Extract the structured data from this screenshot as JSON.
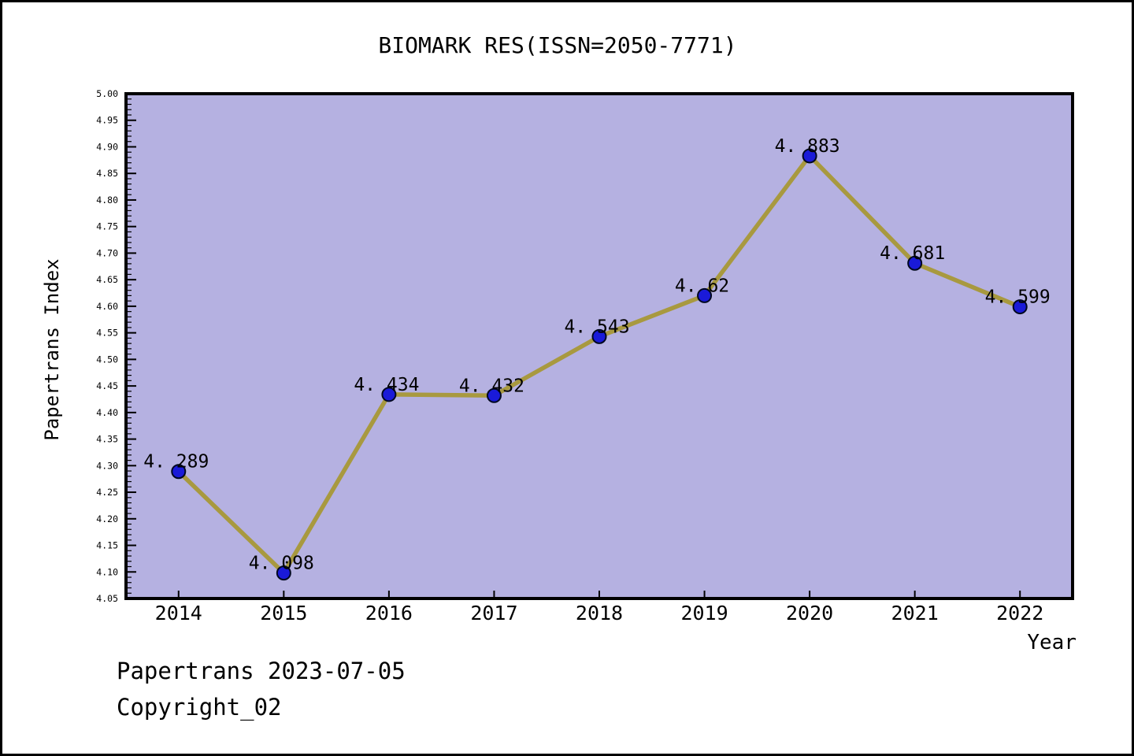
{
  "window": {
    "background": "#ffffff",
    "outer_border_color": "#000000"
  },
  "footer": {
    "watermark": "Papertrans 2023-07-05",
    "copyright": "Copyright_02"
  },
  "chart_data": {
    "type": "line",
    "title": "BIOMARK RES(ISSN=2050-7771)",
    "xlabel": "Year",
    "ylabel": "Papertrans Index",
    "x": [
      "2014",
      "2015",
      "2016",
      "2017",
      "2018",
      "2019",
      "2020",
      "2021",
      "2022"
    ],
    "series": [
      {
        "name": "Papertrans Index",
        "values": [
          4.289,
          4.098,
          4.434,
          4.432,
          4.543,
          4.62,
          4.883,
          4.681,
          4.599
        ]
      }
    ],
    "point_labels": [
      "4. 289",
      "4. 098",
      "4. 434",
      "4. 432",
      "4. 543",
      "4. 62",
      "4. 883",
      "4. 681",
      "4. 599"
    ],
    "ylim": [
      4.05,
      5.0
    ],
    "y_major_step": 0.05,
    "y_minor_step": 0.01,
    "y_tick_decimals": 2,
    "grid": false,
    "legend_position": "none",
    "colors": {
      "plot_bg": "#b5b1e1",
      "line": "#a8993f",
      "marker": "#1a1ad8",
      "marker_edge": "#000820",
      "frame": "#000000",
      "text": "#000000"
    }
  }
}
